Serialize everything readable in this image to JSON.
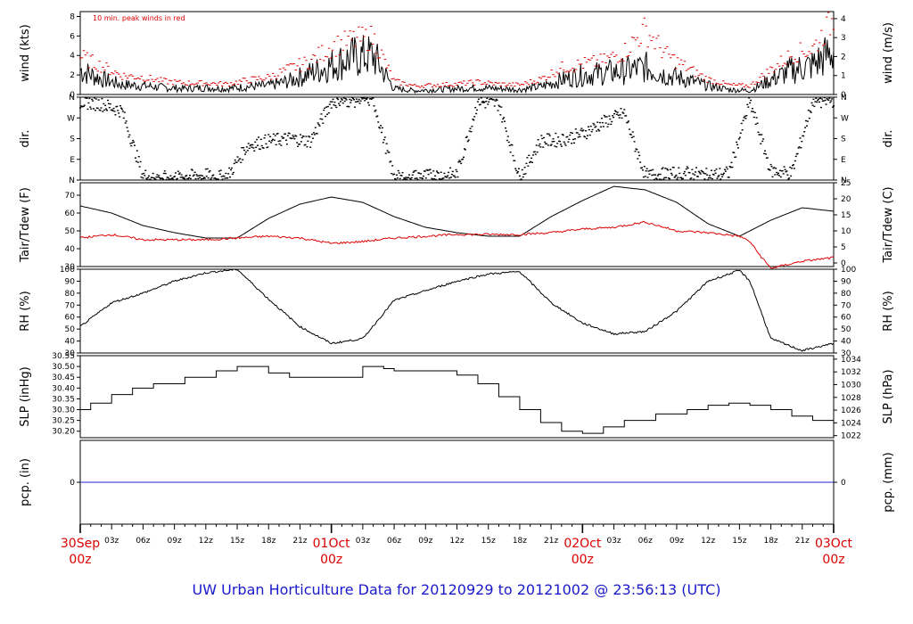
{
  "footer": {
    "title": "UW Urban Horticulture Data for 20120929  to  20121002 @ 23:56:13  (UTC)",
    "color": "#1a1acc"
  },
  "colors": {
    "primary": "#000000",
    "peak": "#dd0000",
    "dewpoint": "#dd0000",
    "precip": "#2222cc",
    "day_label": "#dd0000"
  },
  "chart_data": [
    {
      "type": "line",
      "name": "wind",
      "ylabel_left": "wind (kts)",
      "ylabel_right": "wind (m/s)",
      "annotation": "10 min. peak winds in red",
      "ylim": [
        0,
        8.5
      ],
      "yticks_left": [
        0,
        2,
        4,
        6,
        8
      ],
      "yticks_right": [
        0,
        1,
        2,
        3,
        4
      ],
      "right_scale": "m/s = kts * 0.5144",
      "x_hours": [
        0,
        2,
        4,
        6,
        8,
        10,
        12,
        14,
        16,
        18,
        20,
        22,
        24,
        26,
        28,
        30,
        32,
        34,
        36,
        38,
        40,
        42,
        44,
        46,
        48,
        50,
        52,
        54,
        56,
        58,
        60,
        62,
        64,
        66,
        68,
        70,
        72
      ],
      "values": [
        2.5,
        1.6,
        1.0,
        0.9,
        0.7,
        0.6,
        0.7,
        0.6,
        0.8,
        0.9,
        1.4,
        2.2,
        3.0,
        3.8,
        4.0,
        0.6,
        0.4,
        0.5,
        0.6,
        0.7,
        0.6,
        0.5,
        0.8,
        1.5,
        2.0,
        2.2,
        2.4,
        2.8,
        2.0,
        1.5,
        0.9,
        0.5,
        0.4,
        1.5,
        2.5,
        3.0,
        4.5
      ],
      "peak_values": [
        4.0,
        3.0,
        2.0,
        1.8,
        1.4,
        1.2,
        1.2,
        1.1,
        1.5,
        1.8,
        2.7,
        3.5,
        5.0,
        5.7,
        6.0,
        1.4,
        0.9,
        1.0,
        1.1,
        1.3,
        1.1,
        1.0,
        1.6,
        2.8,
        3.2,
        3.5,
        4.5,
        6.8,
        4.2,
        2.8,
        1.6,
        1.0,
        0.9,
        2.6,
        4.2,
        4.8,
        8.0
      ]
    },
    {
      "type": "scatter",
      "name": "dir",
      "ylabel_left": "dir.",
      "ylabel_right": "dir.",
      "ylim": [
        0,
        360
      ],
      "yticks_labels": [
        "N",
        "E",
        "S",
        "W",
        "N"
      ],
      "yticks_deg": [
        0,
        90,
        180,
        270,
        360
      ],
      "x_hours": [
        0,
        2,
        4,
        6,
        8,
        10,
        12,
        14,
        16,
        18,
        20,
        22,
        24,
        26,
        28,
        30,
        32,
        34,
        36,
        38,
        40,
        42,
        44,
        46,
        48,
        50,
        52,
        54,
        56,
        58,
        60,
        62,
        64,
        66,
        68,
        70,
        72
      ],
      "values": [
        340,
        330,
        300,
        20,
        10,
        15,
        20,
        10,
        150,
        170,
        180,
        170,
        340,
        345,
        350,
        10,
        15,
        20,
        25,
        340,
        330,
        10,
        170,
        175,
        200,
        250,
        290,
        20,
        25,
        30,
        20,
        30,
        340,
        40,
        30,
        340,
        345
      ]
    },
    {
      "type": "line",
      "name": "temperature",
      "ylabel_left": "Tair/Tdew (F)",
      "ylabel_right": "Tair/Tdew (C)",
      "ylim": [
        30,
        77
      ],
      "yticks_left": [
        30,
        40,
        50,
        60,
        70
      ],
      "yticks_right": [
        0,
        5,
        10,
        15,
        20,
        25
      ],
      "series": [
        {
          "color": "#000000",
          "x_hours": [
            0,
            3,
            6,
            9,
            12,
            15,
            18,
            21,
            24,
            27,
            30,
            33,
            36,
            39,
            42,
            45,
            48,
            51,
            54,
            57,
            60,
            63,
            66,
            69,
            72
          ],
          "values": [
            64,
            60,
            53,
            49,
            46,
            46,
            57,
            65,
            69,
            66,
            58,
            52,
            49,
            47,
            47,
            58,
            67,
            75,
            73,
            66,
            54,
            47,
            56,
            63,
            61
          ]
        },
        {
          "color": "#dd0000",
          "x_hours": [
            0,
            3,
            6,
            9,
            12,
            15,
            18,
            21,
            24,
            27,
            30,
            33,
            36,
            39,
            42,
            45,
            48,
            51,
            54,
            57,
            60,
            63,
            64,
            65,
            66,
            69,
            72
          ],
          "values": [
            46,
            48,
            45,
            45,
            45,
            46,
            47,
            46,
            43,
            44,
            46,
            47,
            48,
            48,
            48,
            49,
            51,
            52,
            55,
            50,
            49,
            47,
            44,
            36,
            29,
            33,
            35
          ]
        }
      ]
    },
    {
      "type": "line",
      "name": "rh",
      "ylabel_left": "RH (%)",
      "ylabel_right": "RH (%)",
      "ylim": [
        30,
        100
      ],
      "yticks": [
        30,
        40,
        50,
        60,
        70,
        80,
        90,
        100
      ],
      "x_hours": [
        0,
        3,
        6,
        9,
        12,
        15,
        18,
        21,
        24,
        27,
        30,
        33,
        36,
        39,
        42,
        45,
        48,
        51,
        54,
        57,
        60,
        63,
        64,
        66,
        69,
        72
      ],
      "values": [
        52,
        72,
        80,
        90,
        97,
        100,
        75,
        52,
        38,
        42,
        74,
        82,
        90,
        96,
        98,
        72,
        55,
        46,
        48,
        65,
        90,
        99,
        90,
        42,
        32,
        38
      ]
    },
    {
      "type": "line",
      "name": "slp",
      "ylabel_left": "SLP (inHg)",
      "ylabel_right": "SLP (hPa)",
      "ylim": [
        30.17,
        30.55
      ],
      "yticks_left": [
        30.2,
        30.25,
        30.3,
        30.35,
        30.4,
        30.45,
        30.5,
        30.55
      ],
      "yticks_right": [
        1022,
        1024,
        1026,
        1028,
        1030,
        1032,
        1034
      ],
      "right_scale": "hPa = inHg * 33.8639",
      "step": true,
      "x_hours": [
        0,
        1,
        3,
        5,
        7,
        10,
        13,
        15,
        18,
        20,
        27,
        29,
        30,
        36,
        38,
        40,
        42,
        44,
        46,
        48,
        50,
        52,
        55,
        58,
        60,
        62,
        64,
        66,
        68,
        70,
        72
      ],
      "values": [
        30.3,
        30.33,
        30.37,
        30.4,
        30.42,
        30.45,
        30.48,
        30.5,
        30.47,
        30.45,
        30.5,
        30.49,
        30.48,
        30.46,
        30.42,
        30.36,
        30.3,
        30.24,
        30.2,
        30.19,
        30.22,
        30.25,
        30.28,
        30.3,
        30.32,
        30.33,
        30.32,
        30.3,
        30.27,
        30.25,
        30.27
      ]
    },
    {
      "type": "line",
      "name": "pcp",
      "ylabel_left": "pcp. (in)",
      "ylabel_right": "pcp. (mm)",
      "ylim": [
        -1,
        1
      ],
      "yticks_left": [
        0
      ],
      "yticks_right": [
        0
      ],
      "x_hours": [
        0,
        72
      ],
      "values": [
        0,
        0
      ]
    }
  ],
  "x_axis": {
    "hour_ticks": [
      "03z",
      "06z",
      "09z",
      "12z",
      "15z",
      "18z",
      "21z"
    ],
    "day_labels": [
      {
        "hour": 0,
        "top": "30Sep",
        "bottom": "00z"
      },
      {
        "hour": 24,
        "top": "01Oct",
        "bottom": "00z"
      },
      {
        "hour": 48,
        "top": "02Oct",
        "bottom": "00z"
      },
      {
        "hour": 72,
        "top": "03Oct",
        "bottom": "00z"
      }
    ]
  }
}
